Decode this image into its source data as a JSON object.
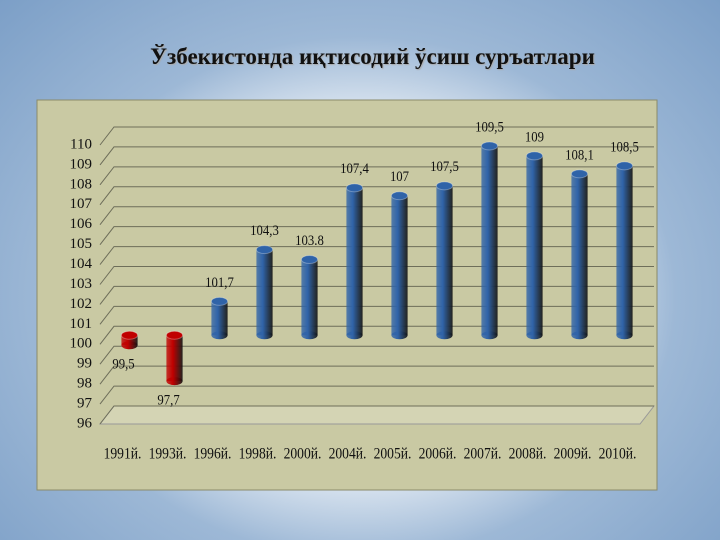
{
  "chart_data": {
    "type": "bar",
    "title": "Ўзбекистонда иқтисодий ўсиш суръатлари",
    "categories": [
      "1991й.",
      "1993й.",
      "1996й.",
      "1998й.",
      "2000й.",
      "2004й.",
      "2005й.",
      "2006й.",
      "2007й.",
      "2008й.",
      "2009й.",
      "2010й."
    ],
    "values": [
      99.5,
      97.7,
      101.7,
      104.3,
      103.8,
      107.4,
      107,
      107.5,
      109.5,
      109,
      108.1,
      108.5
    ],
    "value_labels": [
      "99,5",
      "97,7",
      "101,7",
      "104,3",
      "103.8",
      "107,4",
      "107",
      "107,5",
      "109,5",
      "109",
      "108,1",
      "108,5"
    ],
    "colors": [
      "#c00000",
      "#c00000",
      "#2f63a8",
      "#2f63a8",
      "#2f63a8",
      "#2f63a8",
      "#2f63a8",
      "#2f63a8",
      "#2f63a8",
      "#2f63a8",
      "#2f63a8",
      "#2f63a8"
    ],
    "baseline": 100,
    "ylim": [
      96,
      110
    ],
    "yticks": [
      96,
      97,
      98,
      99,
      100,
      101,
      102,
      103,
      104,
      105,
      106,
      107,
      108,
      109,
      110
    ],
    "grid": true
  }
}
